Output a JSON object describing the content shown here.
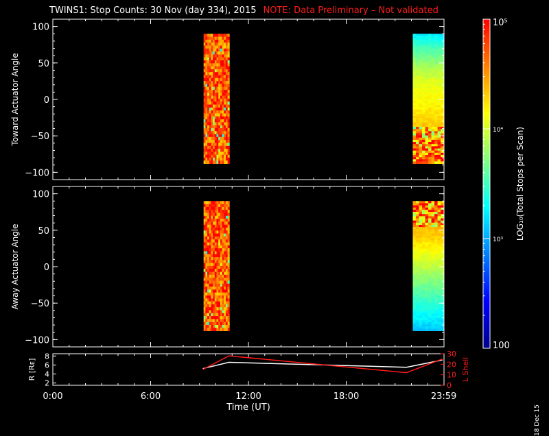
{
  "header": {
    "title": "TWINS1: Stop Counts: 30 Nov (day 334), 2015",
    "note": "NOTE: Data Preliminary – Not validated",
    "note_color": "#ff1a1a"
  },
  "colorbar": {
    "label": "LOG₁₀(Total Stops per Scan)",
    "tick_labels": [
      "10⁵",
      "10⁴",
      "10³",
      "100"
    ],
    "tick_values": [
      100000,
      10000,
      1000,
      100
    ],
    "range": [
      100,
      100000
    ],
    "scale": "log",
    "colormap": [
      "#00008f",
      "#0000ff",
      "#0080ff",
      "#00ffff",
      "#80ff80",
      "#ffff00",
      "#ff8000",
      "#ff0000"
    ]
  },
  "stamp": "18 Dec 15",
  "chart_data": [
    {
      "type": "heatmap",
      "panel": "top",
      "ylabel": "Toward Actuator Angle",
      "ylim": [
        -110,
        110
      ],
      "yticks": [
        100,
        50,
        0,
        -50,
        -100
      ],
      "xlim": [
        0,
        24
      ],
      "data_extent_y": [
        -88,
        90
      ],
      "blocks": [
        {
          "time_start": "09:15",
          "time_end": "10:50",
          "level_log10": 4.7,
          "pattern": "noisy"
        },
        {
          "time_start": "22:05",
          "time_end": "23:59",
          "level_log10": 4.2,
          "pattern": "smooth-banded"
        }
      ]
    },
    {
      "type": "heatmap",
      "panel": "middle",
      "ylabel": "Away Actuator Angle",
      "ylim": [
        -110,
        110
      ],
      "yticks": [
        100,
        50,
        0,
        -50,
        -100
      ],
      "xlim": [
        0,
        24
      ],
      "data_extent_y": [
        -88,
        90
      ],
      "blocks": [
        {
          "time_start": "09:15",
          "time_end": "10:50",
          "level_log10": 4.7,
          "pattern": "noisy"
        },
        {
          "time_start": "22:05",
          "time_end": "23:59",
          "level_log10": 4.2,
          "pattern": "smooth-banded"
        }
      ]
    },
    {
      "type": "line",
      "panel": "bottom",
      "ylabel": "R [Rᴇ]",
      "ylabel_right": "L Shell",
      "xlabel": "Time (UT)",
      "xtick_labels": [
        "0:00",
        "6:00",
        "12:00",
        "18:00",
        "23:59"
      ],
      "xticks_hours": [
        0,
        6,
        12,
        18,
        23.983
      ],
      "ylim": [
        1.5,
        8.5
      ],
      "yticks": [
        2,
        4,
        6,
        8
      ],
      "ylim_right": [
        0,
        30
      ],
      "yticks_right": [
        0,
        10,
        20,
        30
      ],
      "series": [
        {
          "name": "R [Rᴇ]",
          "color": "#ffffff",
          "axis": "left",
          "x": [
            9.2,
            10.8,
            21.7,
            23.9
          ],
          "y": [
            5.2,
            6.6,
            5.5,
            7.1
          ]
        },
        {
          "name": "L Shell",
          "color": "#ff1a1a",
          "axis": "right",
          "x": [
            9.2,
            10.8,
            21.7,
            23.9
          ],
          "y": [
            15,
            28,
            12,
            25
          ]
        }
      ]
    }
  ]
}
